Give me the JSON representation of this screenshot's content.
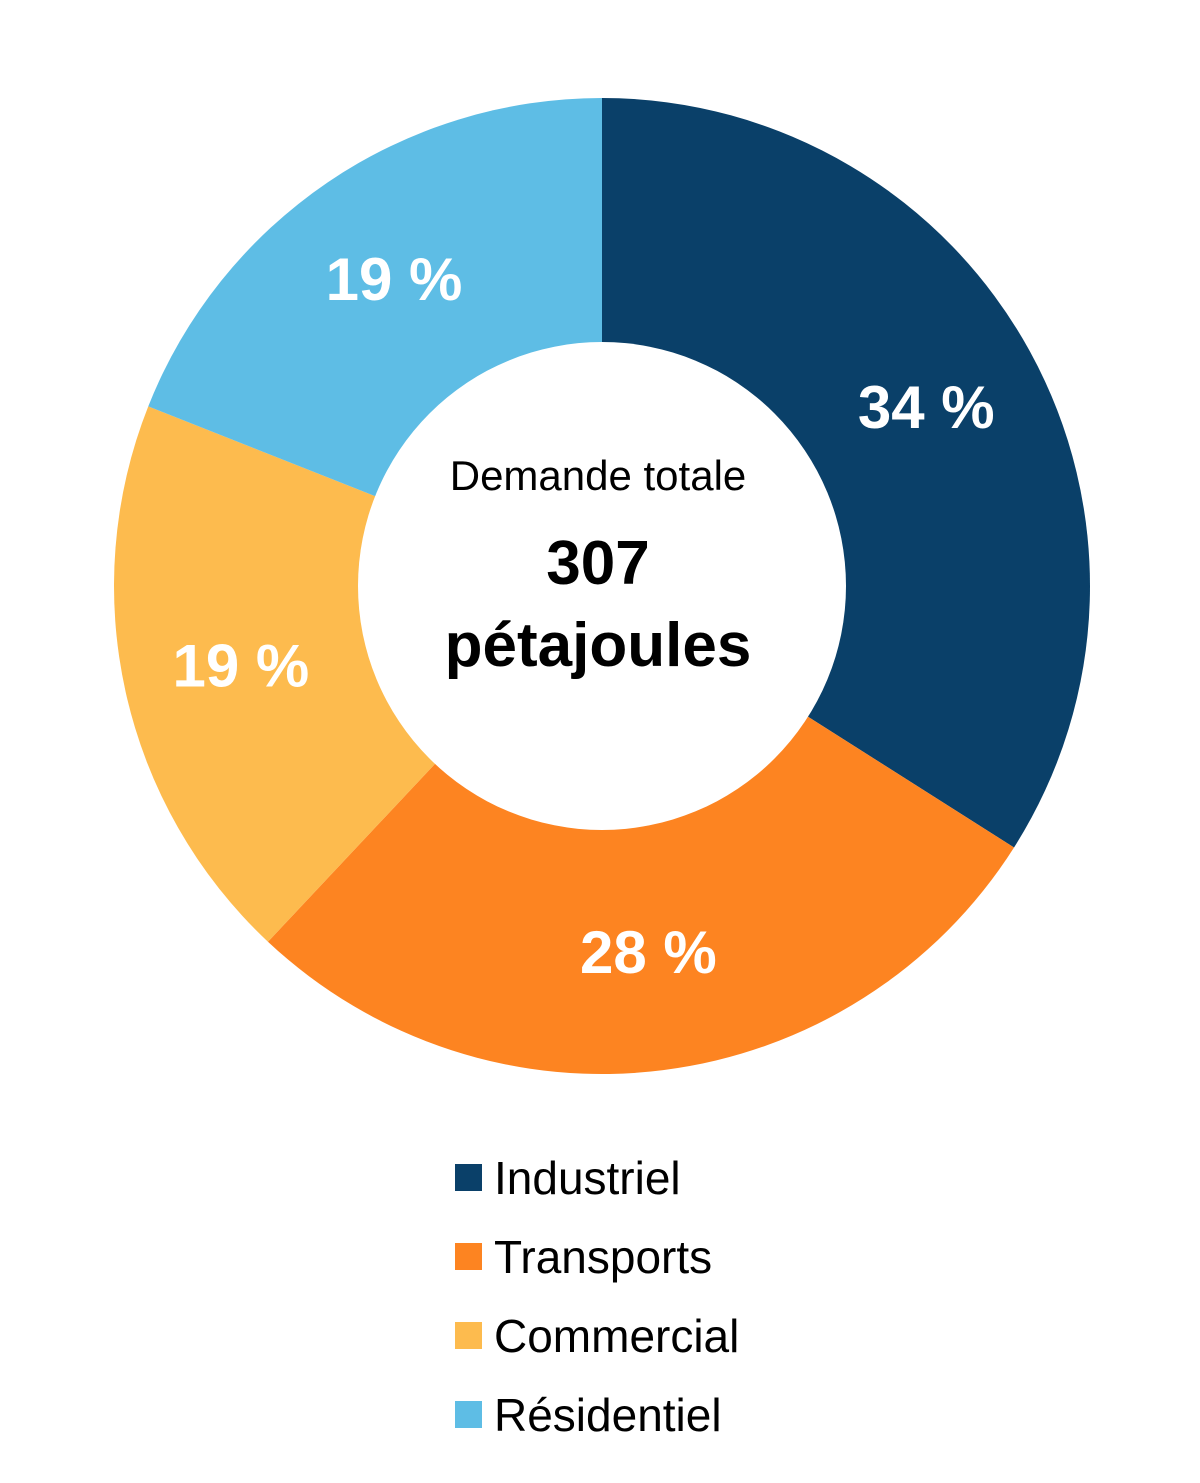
{
  "chart_data": {
    "type": "pie",
    "donut": true,
    "center_text": {
      "label": "Demande totale",
      "value_line1": "307",
      "value_line2": "pétajoules"
    },
    "slices": [
      {
        "name": "Industriel",
        "value": 34,
        "label": "34 %",
        "color": "#0a4069"
      },
      {
        "name": "Transports",
        "value": 28,
        "label": "28 %",
        "color": "#fd8421"
      },
      {
        "name": "Commercial",
        "value": 19,
        "label": "19 %",
        "color": "#fdbb4e"
      },
      {
        "name": "Résidentiel",
        "value": 19,
        "label": "19 %",
        "color": "#5ebde5"
      }
    ],
    "legend_position": "bottom"
  }
}
